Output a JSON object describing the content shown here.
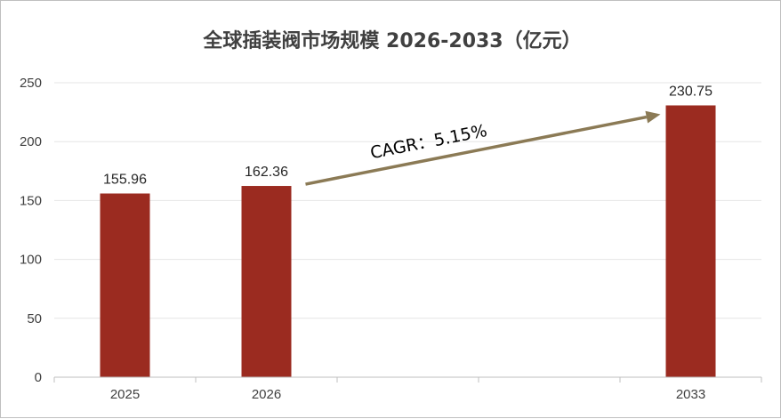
{
  "chart_data": {
    "type": "bar",
    "title": "全球插装阀市场规模 2026-2033（亿元）",
    "categories": [
      "2025",
      "2026",
      "",
      "",
      "2033"
    ],
    "values": [
      155.96,
      162.36,
      null,
      null,
      230.75
    ],
    "data_labels": [
      "155.96",
      "162.36",
      "",
      "",
      "230.75"
    ],
    "ylim": [
      0,
      250
    ],
    "yticks": [
      0,
      50,
      100,
      150,
      200,
      250
    ],
    "xlabel": "",
    "ylabel": "",
    "grid": true,
    "legend": "none",
    "annotation": {
      "text": "CAGR：5.15%",
      "from": "2026",
      "to": "2033"
    },
    "colors": {
      "bar": "#9b2b20",
      "arrow": "#8b7a55",
      "grid": "#e6e6e6",
      "axis": "#bfbfbf"
    }
  }
}
